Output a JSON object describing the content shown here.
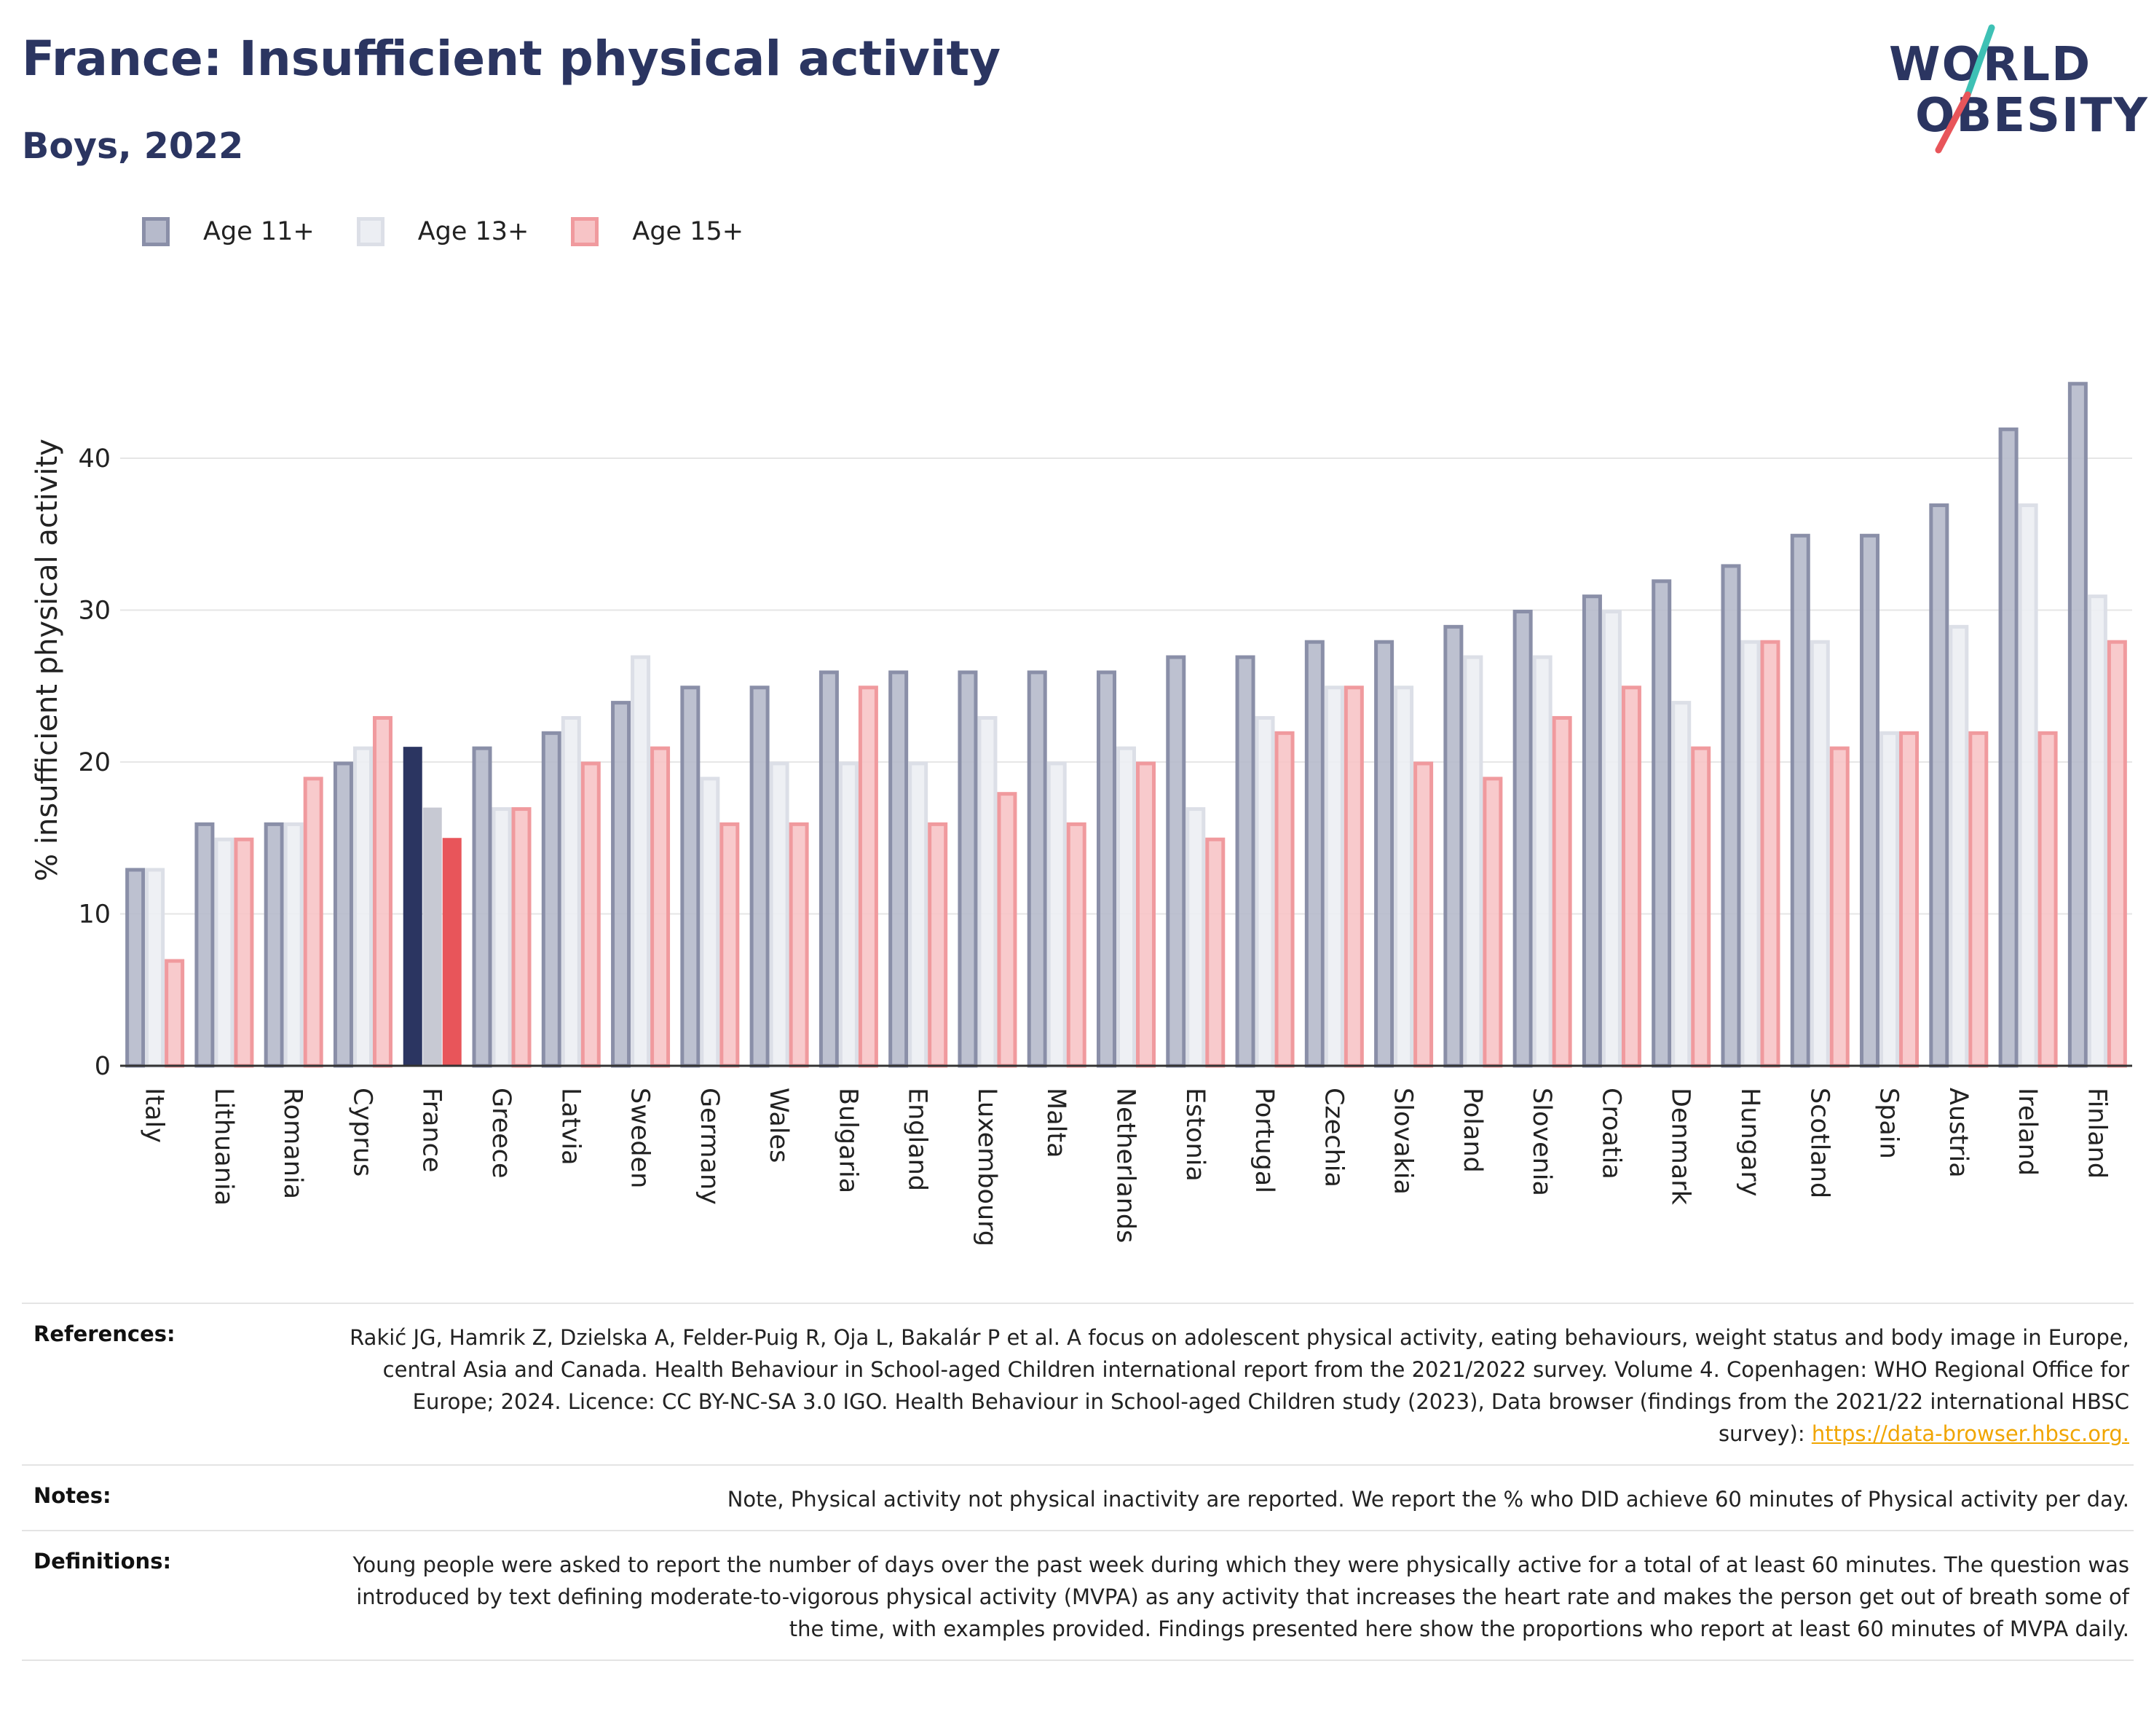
{
  "header": {
    "title": "France: Insufficient physical activity",
    "subtitle": "Boys, 2022"
  },
  "logo": {
    "line1": "WORLD",
    "line2": "OBESITY"
  },
  "legend": [
    {
      "label": "Age 11+",
      "fill": "#b6bacb",
      "stroke": "#8a8fa8"
    },
    {
      "label": "Age 13+",
      "fill": "#eceef3",
      "stroke": "#dcdfe7"
    },
    {
      "label": "Age 15+",
      "fill": "#f7c4c6",
      "stroke": "#f09a9e"
    }
  ],
  "colors": {
    "highlight_11": "#2b3561",
    "highlight_13": "#c7c9d3",
    "highlight_15": "#e8555a",
    "grid": "#e6e6e6",
    "axis": "#333333",
    "logo_slash_teal": "#3ec1b5",
    "logo_slash_red": "#e8555a"
  },
  "chart_data": {
    "type": "bar",
    "title": "",
    "xlabel": "",
    "ylabel": "% insufficient physical activity",
    "ylim": [
      0,
      45.5
    ],
    "yticks": [
      0,
      10,
      20,
      30,
      40
    ],
    "grid": true,
    "legend_position": "top-left",
    "highlight_category": "France",
    "categories": [
      "Italy",
      "Lithuania",
      "Romania",
      "Cyprus",
      "France",
      "Greece",
      "Latvia",
      "Sweden",
      "Germany",
      "Wales",
      "Bulgaria",
      "England",
      "Luxembourg",
      "Malta",
      "Netherlands",
      "Estonia",
      "Portugal",
      "Czechia",
      "Slovakia",
      "Poland",
      "Slovenia",
      "Croatia",
      "Denmark",
      "Hungary",
      "Scotland",
      "Spain",
      "Austria",
      "Ireland",
      "Finland"
    ],
    "series": [
      {
        "name": "Age 11+",
        "values": [
          13,
          16,
          16,
          20,
          21,
          21,
          22,
          24,
          25,
          25,
          26,
          26,
          26,
          26,
          26,
          27,
          27,
          28,
          28,
          29,
          30,
          31,
          32,
          33,
          35,
          35,
          37,
          42,
          45
        ]
      },
      {
        "name": "Age 13+",
        "values": [
          13,
          15,
          16,
          21,
          17,
          17,
          23,
          27,
          19,
          20,
          20,
          20,
          23,
          20,
          21,
          17,
          23,
          25,
          25,
          27,
          27,
          30,
          24,
          28,
          28,
          22,
          29,
          37,
          31
        ]
      },
      {
        "name": "Age 15+",
        "values": [
          7,
          15,
          19,
          23,
          15,
          17,
          20,
          21,
          16,
          16,
          25,
          16,
          18,
          16,
          20,
          15,
          22,
          25,
          20,
          19,
          23,
          25,
          21,
          28,
          21,
          22,
          22,
          22,
          28
        ]
      }
    ]
  },
  "references": [
    {
      "label": "References:",
      "text": "Rakić JG, Hamrik Z, Dzielska A, Felder-Puig R, Oja L, Bakalár P et al. A focus on adolescent physical activity, eating behaviours, weight status and body image in Europe, central Asia and Canada. Health Behaviour in School-aged Children international report from the 2021/2022 survey. Volume 4. Copenhagen: WHO Regional Office for Europe; 2024. Licence: CC BY-NC-SA 3.0 IGO. Health Behaviour in School-aged Children study (2023), Data browser (findings from the 2021/22 international HBSC survey): ",
      "link": "https://data-browser.hbsc.org."
    },
    {
      "label": "Notes:",
      "text": "Note, Physical activity not physical inactivity are reported. We report the % who DID achieve 60 minutes of Physical activity per day.",
      "link": ""
    },
    {
      "label": "Definitions:",
      "text": "Young people were asked to report the number of days over the past week during which they were physically active for a total of at least 60 minutes. The question was introduced by text defining moderate-to-vigorous physical activity (MVPA) as any activity that increases the heart rate and makes the person get out of breath some of the time, with examples provided. Findings presented here show the proportions who report at least 60 minutes of MVPA daily.",
      "link": ""
    }
  ]
}
